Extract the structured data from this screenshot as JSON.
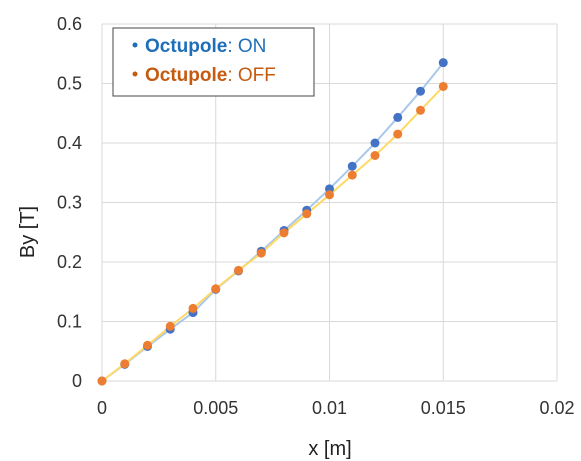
{
  "chart_data": {
    "type": "scatter",
    "xlabel": "x [m]",
    "ylabel": "By [T]",
    "xlim": [
      0,
      0.02
    ],
    "ylim": [
      0,
      0.6
    ],
    "x_ticks": [
      "0",
      "0.005",
      "0.01",
      "0.015",
      "0.02"
    ],
    "x_tick_values": [
      0,
      0.005,
      0.01,
      0.015,
      0.02
    ],
    "y_ticks": [
      "0",
      "0.1",
      "0.2",
      "0.3",
      "0.4",
      "0.5",
      "0.6"
    ],
    "y_tick_values": [
      0,
      0.1,
      0.2,
      0.3,
      0.4,
      0.5,
      0.6
    ],
    "grid": true,
    "legend_position": "top-left",
    "series": [
      {
        "legend_bold": "Octupole",
        "legend_rest": ": ON",
        "color": "#4472c4",
        "label_color": "#1f6fb8",
        "trend_color": "#a9c8ea",
        "x": [
          0,
          0.001,
          0.002,
          0.003,
          0.004,
          0.005,
          0.006,
          0.007,
          0.008,
          0.009,
          0.01,
          0.011,
          0.012,
          0.013,
          0.014,
          0.015
        ],
        "y": [
          0.0,
          0.028,
          0.058,
          0.087,
          0.115,
          0.154,
          0.185,
          0.218,
          0.253,
          0.287,
          0.323,
          0.361,
          0.4,
          0.443,
          0.487,
          0.535
        ]
      },
      {
        "legend_bold": "Octupole",
        "legend_rest": ": OFF",
        "color": "#ed7d31",
        "label_color": "#c55a11",
        "trend_color": "#ffd966",
        "x": [
          0,
          0.001,
          0.002,
          0.003,
          0.004,
          0.005,
          0.006,
          0.007,
          0.008,
          0.009,
          0.01,
          0.011,
          0.012,
          0.013,
          0.014,
          0.015
        ],
        "y": [
          0.0,
          0.029,
          0.06,
          0.092,
          0.122,
          0.155,
          0.186,
          0.215,
          0.249,
          0.281,
          0.313,
          0.346,
          0.379,
          0.415,
          0.455,
          0.495
        ]
      }
    ]
  }
}
